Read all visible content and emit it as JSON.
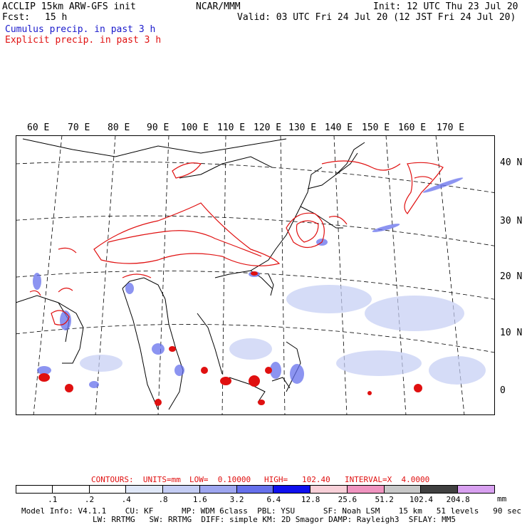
{
  "header": {
    "model": "ACCLIP 15km ARW-GFS init",
    "fcst_label": "Fcst:",
    "fcst_value": "15 h",
    "center": "NCAR/MMM",
    "init": "Init: 12 UTC Thu 23 Jul 20",
    "valid": "Valid: 03 UTC Fri 24 Jul 20 (12 JST Fri 24 Jul 20)",
    "cumulus": "Cumulus precip. in past 3 h",
    "explicit": "Explicit precip. in past 3 h",
    "cumulus_color": "#1a1acc",
    "explicit_color": "#e01010"
  },
  "map": {
    "lon_labels": [
      "60 E",
      "70 E",
      "80 E",
      "90 E",
      "100 E",
      "110 E",
      "120 E",
      "130 E",
      "140 E",
      "150 E",
      "160 E",
      "170 E"
    ],
    "lat_labels": [
      "40 N",
      "30 N",
      "20 N",
      "10 N",
      "0"
    ]
  },
  "contours": {
    "units_label": "CONTOURS:  UNITS=mm",
    "low": "LOW=  0.10000",
    "high": "HIGH=   102.40",
    "interval": "INTERVAL=X  4.0000"
  },
  "colorbar": {
    "ticks": [
      ".1",
      ".2",
      ".4",
      ".8",
      "1.6",
      "3.2",
      "6.4",
      "12.8",
      "25.6",
      "51.2",
      "102.4",
      "204.8"
    ],
    "unit": "mm",
    "colors": [
      "#ffffff",
      "#ffffff",
      "#ffffff",
      "#e0e8f8",
      "#c4cdf4",
      "#9ea6f0",
      "#6670ec",
      "#1010ee",
      "#f8d0d8",
      "#f094c0",
      "#c8c8c8",
      "#404040",
      "#d8a0f0"
    ]
  },
  "footer": {
    "line1": "Model Info: V4.1.1    CU: KF      MP: WDM 6class  PBL: YSU      SF: Noah LSM    15 km   51 levels   90 sec",
    "line2": "LW: RRTMG   SW: RRTMG  DIFF: simple KM: 2D Smagor DAMP: Rayleigh3  SFLAY: MM5"
  }
}
